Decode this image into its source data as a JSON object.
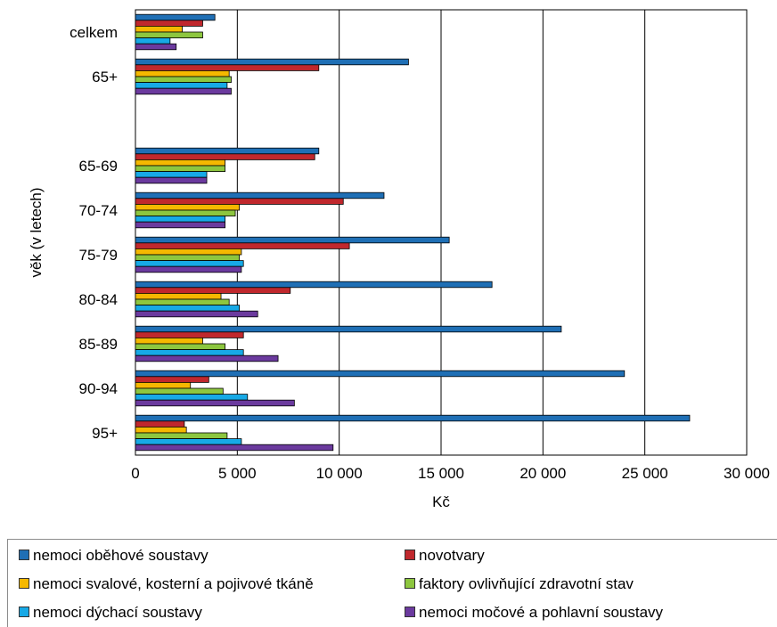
{
  "chart_data": {
    "type": "bar",
    "orientation": "horizontal",
    "xlabel": "Kč",
    "ylabel": "věk (v letech)",
    "xlim": [
      0,
      30000
    ],
    "xticks": [
      "0",
      "5 000",
      "10 000",
      "15 000",
      "20 000",
      "25 000",
      "30 000"
    ],
    "xtick_values": [
      0,
      5000,
      10000,
      15000,
      20000,
      25000,
      30000
    ],
    "grid": "vertical",
    "legend_position": "bottom",
    "categories": [
      "celkem",
      "65+",
      "",
      "65-69",
      "70-74",
      "75-79",
      "80-84",
      "85-89",
      "90-94",
      "95+"
    ],
    "series": [
      {
        "name": "nemoci oběhové soustavy",
        "color": "#1f6fb5",
        "values": [
          3900,
          13400,
          null,
          9000,
          12200,
          15400,
          17500,
          20900,
          24000,
          27200
        ]
      },
      {
        "name": "novotvary",
        "color": "#c0282d",
        "values": [
          3300,
          9000,
          null,
          8800,
          10200,
          10500,
          7600,
          5300,
          3600,
          2400
        ]
      },
      {
        "name": "nemoci svalové, kosterní a pojivové tkáně",
        "color": "#f5b800",
        "values": [
          2300,
          4600,
          null,
          4400,
          5100,
          5200,
          4200,
          3300,
          2700,
          2500
        ]
      },
      {
        "name": "faktory ovlivňující zdravotní stav",
        "color": "#8dc63f",
        "values": [
          3300,
          4700,
          null,
          4400,
          4900,
          5100,
          4600,
          4400,
          4300,
          4500
        ]
      },
      {
        "name": "nemoci dýchací soustavy",
        "color": "#17a9e6",
        "values": [
          1700,
          4500,
          null,
          3500,
          4400,
          5300,
          5100,
          5300,
          5500,
          5200
        ]
      },
      {
        "name": "nemoci močové a pohlavní soustavy",
        "color": "#6b3a9e",
        "values": [
          2000,
          4700,
          null,
          3500,
          4400,
          5200,
          6000,
          7000,
          7800,
          9700
        ]
      }
    ]
  }
}
